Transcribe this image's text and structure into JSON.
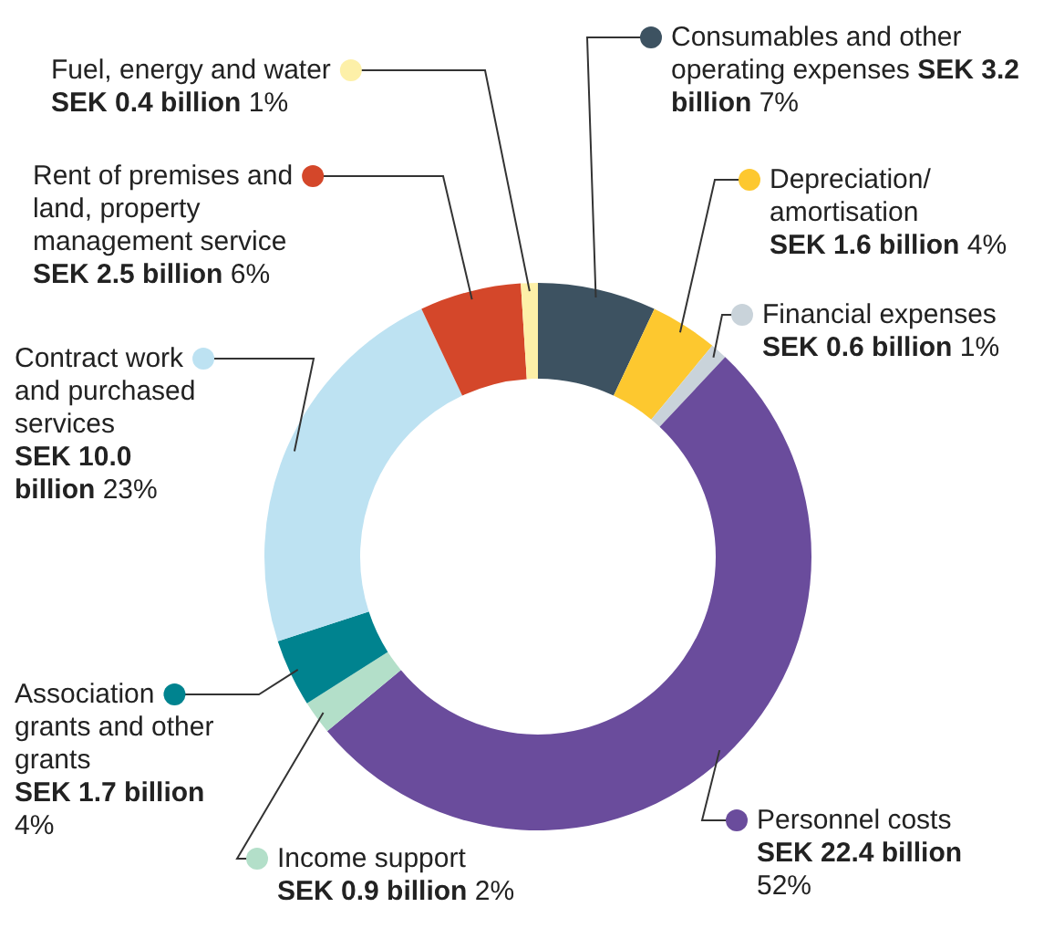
{
  "chart_data": {
    "type": "donut",
    "categories": [
      "Consumables and other operating expenses",
      "Depreciation/ amortisation",
      "Financial expenses",
      "Personnel costs",
      "Income support",
      "Association grants and other grants",
      "Contract work and purchased services",
      "Rent of premises and land, property management service",
      "Fuel, energy and water"
    ],
    "values": [
      7,
      4,
      1,
      52,
      2,
      4,
      23,
      6,
      1
    ],
    "colors": [
      "#3d5261",
      "#fdc82f",
      "#c9d3da",
      "#6a4c9c",
      "#b3dfc9",
      "#00838f",
      "#bde2f2",
      "#d4472a",
      "#fdf0a8"
    ],
    "value_labels": [
      "SEK 3.2 billion 7%",
      "SEK 1.6 billion 4%",
      "SEK 0.6 billion 1%",
      "SEK 22.4 billion 52%",
      "SEK 0.9 billion 2%",
      "SEK 1.7 billion 4%",
      "SEK 10.0 billion 23%",
      "SEK 2.5 billion 6%",
      "SEK 0.4 billion 1%"
    ],
    "legend": "right"
  }
}
